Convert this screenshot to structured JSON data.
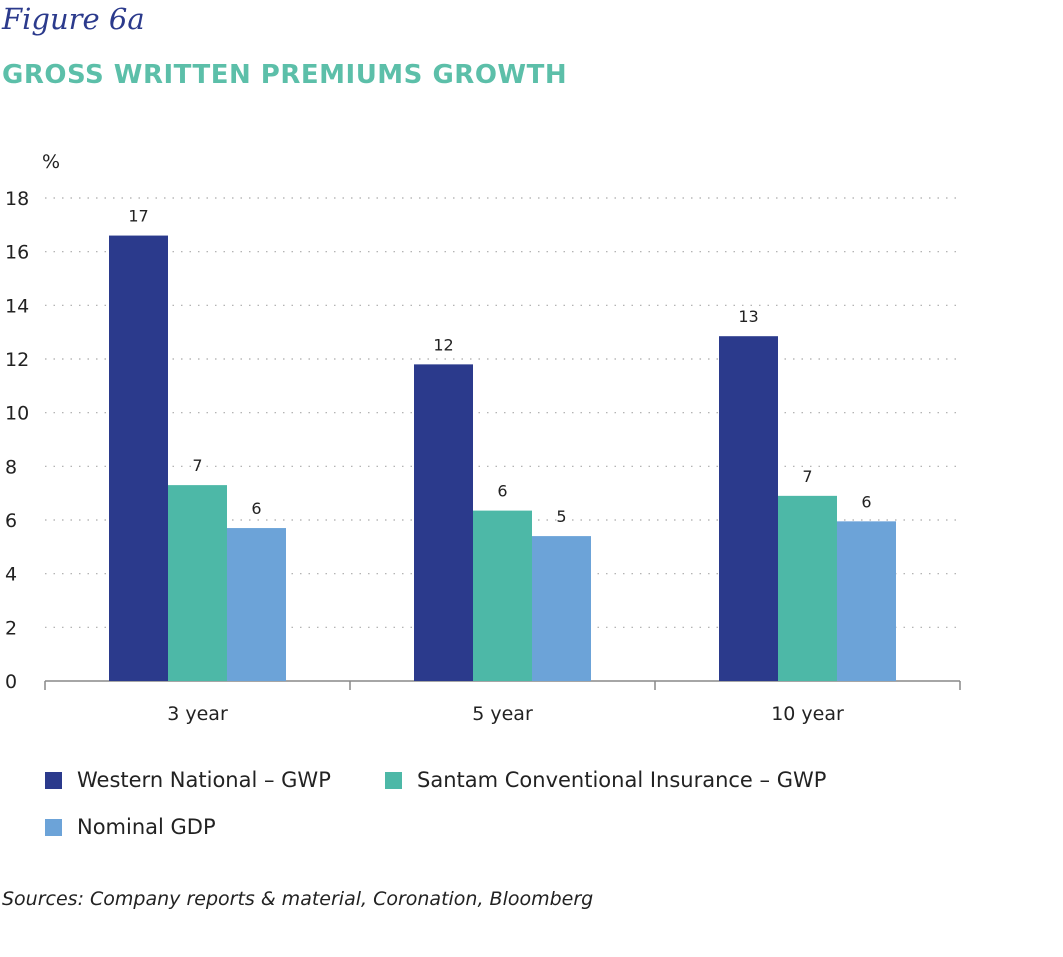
{
  "figure_label": "Figure 6a",
  "chart_title": "GROSS WRITTEN PREMIUMS GROWTH",
  "source": "Sources: Company reports & material, Coronation, Bloomberg",
  "colors": {
    "series1": "#2b3a8c",
    "series2": "#4db8a7",
    "series3": "#6ca3d8",
    "grid": "#aaaaaa",
    "axis": "#888888",
    "text": "#222222"
  },
  "chart_data": {
    "type": "bar",
    "title": "GROSS WRITTEN PREMIUMS GROWTH",
    "ylabel": "%",
    "xlabel": "",
    "ylim": [
      0,
      18
    ],
    "yticks": [
      0,
      2,
      4,
      6,
      8,
      10,
      12,
      14,
      16,
      18
    ],
    "grid": true,
    "categories": [
      "3 year",
      "5 year",
      "10 year"
    ],
    "series": [
      {
        "name": "Western National – GWP",
        "values": [
          16.6,
          11.8,
          12.85
        ],
        "labels": [
          "17",
          "12",
          "13"
        ]
      },
      {
        "name": "Santam Conventional Insurance – GWP",
        "values": [
          7.3,
          6.35,
          6.9
        ],
        "labels": [
          "7",
          "6",
          "7"
        ]
      },
      {
        "name": "Nominal GDP",
        "values": [
          5.7,
          5.4,
          5.95
        ],
        "labels": [
          "6",
          "5",
          "6"
        ]
      }
    ],
    "legend_position": "bottom"
  }
}
